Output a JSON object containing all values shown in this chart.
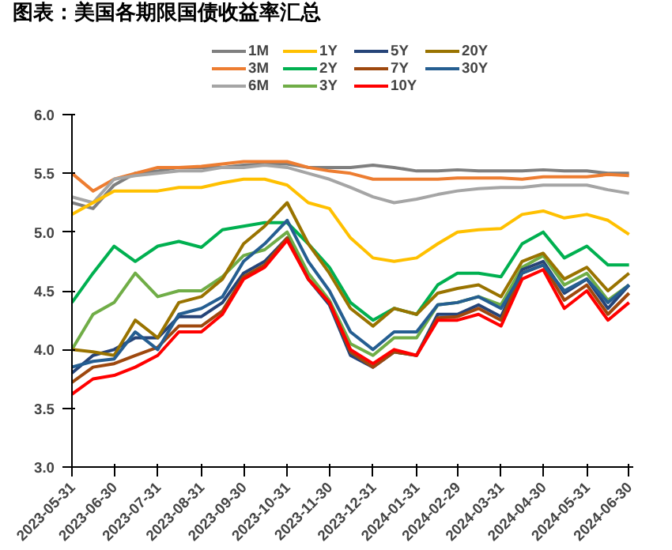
{
  "chart_data": {
    "type": "line",
    "title": "图表：美国各期限国债收益率汇总",
    "x": [
      "2023-05-31",
      "2023-06-15",
      "2023-06-30",
      "2023-07-15",
      "2023-07-31",
      "2023-08-15",
      "2023-08-31",
      "2023-09-15",
      "2023-09-30",
      "2023-10-15",
      "2023-10-31",
      "2023-11-15",
      "2023-11-30",
      "2023-12-15",
      "2023-12-31",
      "2024-01-15",
      "2024-01-31",
      "2024-02-15",
      "2024-02-29",
      "2024-03-15",
      "2024-03-31",
      "2024-04-15",
      "2024-04-30",
      "2024-05-15",
      "2024-05-31",
      "2024-06-15",
      "2024-06-30"
    ],
    "xlim": [
      "2023-05-31",
      "2024-07-03"
    ],
    "xticks": [
      "2023-05-31",
      "2023-06-30",
      "2023-07-31",
      "2023-08-31",
      "2023-09-30",
      "2023-10-31",
      "2023-11-30",
      "2023-12-31",
      "2024-01-31",
      "2024-02-29",
      "2024-03-31",
      "2024-04-30",
      "2024-05-31",
      "2024-06-30"
    ],
    "ylim": [
      3.0,
      6.0
    ],
    "yticks": [
      {
        "value": 3,
        "label": "3.0"
      },
      {
        "value": 3.5,
        "label": "3.5"
      },
      {
        "value": 4,
        "label": "4.0"
      },
      {
        "value": 4.5,
        "label": "4.5"
      },
      {
        "value": 5,
        "label": "5.0"
      },
      {
        "value": 5.5,
        "label": "5.5"
      },
      {
        "value": 6,
        "label": "6.0"
      }
    ],
    "grid": false,
    "legend": "top",
    "marker": "none",
    "line_style": "solid",
    "series": [
      {
        "name": "1M",
        "color": "#7f7f7f",
        "values": [
          5.25,
          5.2,
          5.4,
          5.5,
          5.52,
          5.55,
          5.55,
          5.55,
          5.57,
          5.58,
          5.58,
          5.55,
          5.55,
          5.55,
          5.57,
          5.55,
          5.52,
          5.52,
          5.53,
          5.52,
          5.52,
          5.52,
          5.53,
          5.52,
          5.52,
          5.5,
          5.5
        ]
      },
      {
        "name": "3M",
        "color": "#ed7d31",
        "values": [
          5.5,
          5.35,
          5.45,
          5.5,
          5.55,
          5.55,
          5.56,
          5.58,
          5.6,
          5.6,
          5.6,
          5.55,
          5.52,
          5.5,
          5.45,
          5.45,
          5.45,
          5.45,
          5.46,
          5.46,
          5.46,
          5.45,
          5.47,
          5.47,
          5.47,
          5.49,
          5.48
        ]
      },
      {
        "name": "6M",
        "color": "#a5a5a5",
        "values": [
          5.3,
          5.25,
          5.45,
          5.48,
          5.5,
          5.52,
          5.52,
          5.55,
          5.55,
          5.57,
          5.55,
          5.5,
          5.45,
          5.38,
          5.3,
          5.25,
          5.28,
          5.32,
          5.35,
          5.37,
          5.38,
          5.38,
          5.4,
          5.4,
          5.4,
          5.36,
          5.33
        ]
      },
      {
        "name": "1Y",
        "color": "#ffc000",
        "values": [
          5.15,
          5.25,
          5.35,
          5.35,
          5.35,
          5.38,
          5.38,
          5.42,
          5.45,
          5.45,
          5.4,
          5.25,
          5.2,
          4.95,
          4.78,
          4.75,
          4.78,
          4.9,
          5.0,
          5.02,
          5.03,
          5.15,
          5.18,
          5.12,
          5.15,
          5.1,
          4.98
        ]
      },
      {
        "name": "2Y",
        "color": "#00b050",
        "values": [
          4.4,
          4.65,
          4.88,
          4.75,
          4.88,
          4.92,
          4.87,
          5.02,
          5.05,
          5.08,
          5.08,
          4.9,
          4.7,
          4.4,
          4.25,
          4.35,
          4.3,
          4.55,
          4.65,
          4.65,
          4.62,
          4.9,
          5.0,
          4.78,
          4.88,
          4.72,
          4.72
        ]
      },
      {
        "name": "3Y",
        "color": "#70ad47",
        "values": [
          4.0,
          4.3,
          4.4,
          4.65,
          4.45,
          4.5,
          4.5,
          4.62,
          4.8,
          4.85,
          5.0,
          4.65,
          4.42,
          4.05,
          3.95,
          4.1,
          4.1,
          4.38,
          4.4,
          4.45,
          4.38,
          4.7,
          4.8,
          4.55,
          4.65,
          4.42,
          4.55
        ]
      },
      {
        "name": "5Y",
        "color": "#264478",
        "values": [
          3.8,
          3.95,
          4.0,
          4.1,
          4.1,
          4.28,
          4.28,
          4.4,
          4.65,
          4.75,
          4.95,
          4.6,
          4.38,
          3.95,
          3.85,
          3.98,
          3.95,
          4.3,
          4.3,
          4.38,
          4.28,
          4.68,
          4.75,
          4.48,
          4.6,
          4.35,
          4.55
        ]
      },
      {
        "name": "7Y",
        "color": "#9e480e",
        "values": [
          3.72,
          3.85,
          3.88,
          3.95,
          4.02,
          4.2,
          4.2,
          4.33,
          4.62,
          4.72,
          4.95,
          4.6,
          4.4,
          3.98,
          3.85,
          3.98,
          3.95,
          4.27,
          4.28,
          4.35,
          4.25,
          4.65,
          4.72,
          4.42,
          4.55,
          4.3,
          4.48
        ]
      },
      {
        "name": "10Y",
        "color": "#ff0000",
        "values": [
          3.62,
          3.75,
          3.78,
          3.85,
          3.95,
          4.15,
          4.15,
          4.3,
          4.6,
          4.7,
          4.93,
          4.6,
          4.4,
          4.0,
          3.88,
          4.0,
          3.95,
          4.25,
          4.25,
          4.3,
          4.2,
          4.6,
          4.68,
          4.35,
          4.5,
          4.25,
          4.4
        ]
      },
      {
        "name": "20Y",
        "color": "#997300",
        "values": [
          4.0,
          3.98,
          3.95,
          4.25,
          4.1,
          4.4,
          4.45,
          4.6,
          4.9,
          5.05,
          5.25,
          4.9,
          4.65,
          4.35,
          4.2,
          4.35,
          4.3,
          4.48,
          4.52,
          4.55,
          4.45,
          4.75,
          4.82,
          4.6,
          4.7,
          4.5,
          4.65
        ]
      },
      {
        "name": "30Y",
        "color": "#255e91",
        "values": [
          3.85,
          3.9,
          3.92,
          4.15,
          4.0,
          4.3,
          4.35,
          4.45,
          4.75,
          4.9,
          5.1,
          4.75,
          4.5,
          4.15,
          4.0,
          4.15,
          4.15,
          4.38,
          4.4,
          4.45,
          4.35,
          4.65,
          4.72,
          4.5,
          4.6,
          4.4,
          4.55
        ]
      }
    ]
  }
}
